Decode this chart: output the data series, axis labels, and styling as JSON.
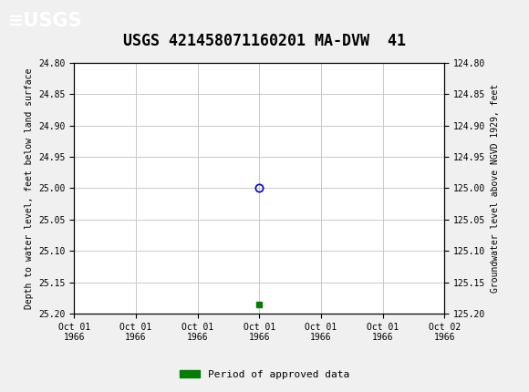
{
  "title": "USGS 421458071160201 MA-DVW  41",
  "title_fontsize": 12,
  "background_color": "#f0f0f0",
  "plot_bg_color": "#ffffff",
  "header_color": "#1a6b3c",
  "left_ylabel": "Depth to water level, feet below land surface",
  "right_ylabel": "Groundwater level above NGVD 1929, feet",
  "ylim_left": [
    24.8,
    25.2
  ],
  "ylim_right": [
    124.8,
    125.2
  ],
  "yticks_left": [
    24.8,
    24.85,
    24.9,
    24.95,
    25.0,
    25.05,
    25.1,
    25.15,
    25.2
  ],
  "yticks_right": [
    124.8,
    124.85,
    124.9,
    124.95,
    125.0,
    125.05,
    125.1,
    125.15,
    125.2
  ],
  "xlim": [
    0,
    6
  ],
  "xtick_labels": [
    "Oct 01\n1966",
    "Oct 01\n1966",
    "Oct 01\n1966",
    "Oct 01\n1966",
    "Oct 01\n1966",
    "Oct 01\n1966",
    "Oct 02\n1966"
  ],
  "xtick_positions": [
    0,
    1,
    2,
    3,
    4,
    5,
    6
  ],
  "data_point_x": 3,
  "data_point_y": 25.0,
  "data_point_color": "#0000cc",
  "green_marker_x": 3,
  "green_marker_y": 25.185,
  "green_color": "#008000",
  "legend_label": "Period of approved data",
  "grid_color": "#c0c0c0",
  "font_family": "monospace"
}
